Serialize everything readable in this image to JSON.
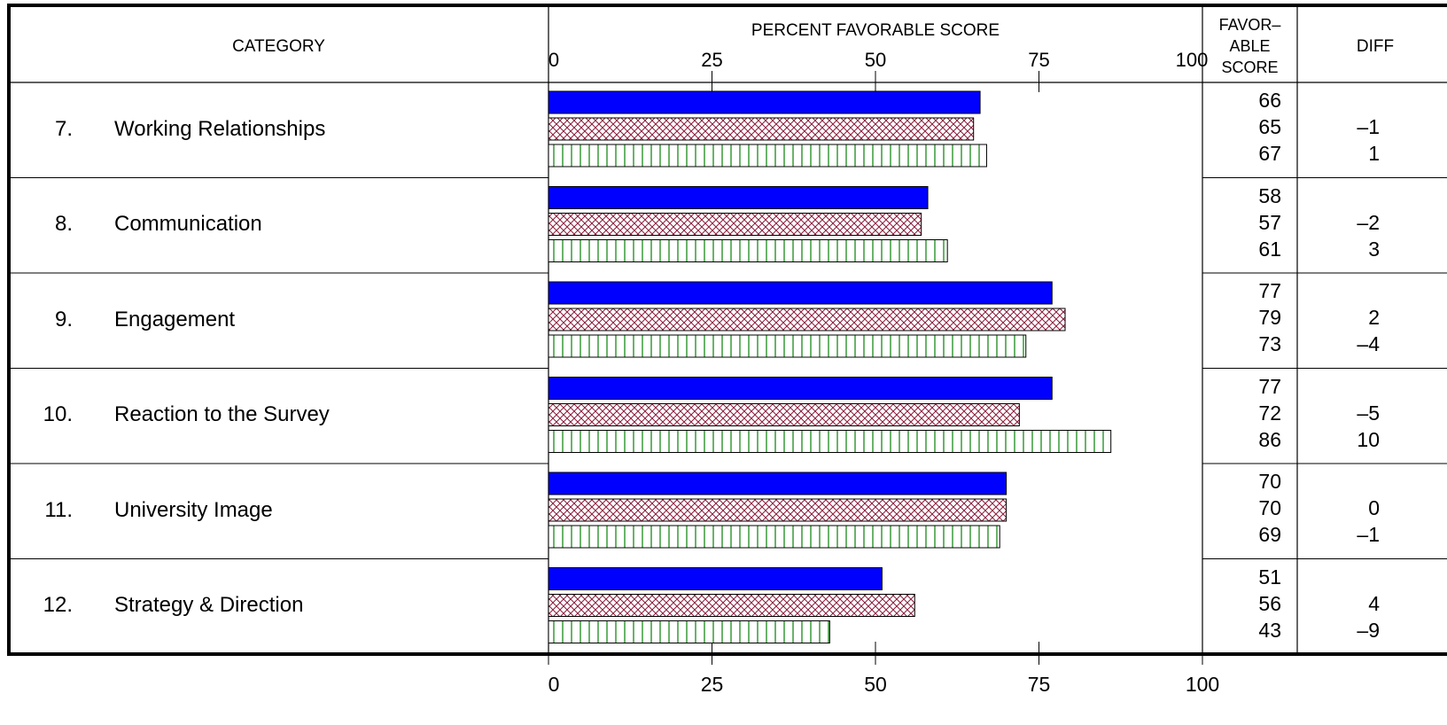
{
  "chart_data": {
    "type": "bar",
    "orientation": "horizontal",
    "headers": {
      "category": "CATEGORY",
      "axis_title": "PERCENT FAVORABLE SCORE",
      "score_line1": "FAVOR–",
      "score_line2": "ABLE",
      "score_line3": "SCORE",
      "diff": "DIFF"
    },
    "xlim": [
      0,
      100
    ],
    "ticks": [
      "0",
      "25",
      "50",
      "75",
      "100"
    ],
    "series_colors": [
      "#0000ff",
      "#8b1a3a",
      "#1a8a1a"
    ],
    "series_styles": [
      "solid",
      "crosshatch",
      "vertical-lines"
    ],
    "categories": [
      {
        "num": "7.",
        "label": "Working Relationships",
        "values": [
          66,
          65,
          67
        ],
        "scores": [
          "66",
          "65",
          "67"
        ],
        "diffs": [
          "",
          "–1",
          "1"
        ]
      },
      {
        "num": "8.",
        "label": "Communication",
        "values": [
          58,
          57,
          61
        ],
        "scores": [
          "58",
          "57",
          "61"
        ],
        "diffs": [
          "",
          "–2",
          "3"
        ]
      },
      {
        "num": "9.",
        "label": "Engagement",
        "values": [
          77,
          79,
          73
        ],
        "scores": [
          "77",
          "79",
          "73"
        ],
        "diffs": [
          "",
          "2",
          "–4"
        ]
      },
      {
        "num": "10.",
        "label": "Reaction to the Survey",
        "values": [
          77,
          72,
          86
        ],
        "scores": [
          "77",
          "72",
          "86"
        ],
        "diffs": [
          "",
          "–5",
          "10"
        ]
      },
      {
        "num": "11.",
        "label": "University Image",
        "values": [
          70,
          70,
          69
        ],
        "scores": [
          "70",
          "70",
          "69"
        ],
        "diffs": [
          "",
          "0",
          "–1"
        ]
      },
      {
        "num": "12.",
        "label": "Strategy & Direction",
        "values": [
          51,
          56,
          43
        ],
        "scores": [
          "51",
          "56",
          "43"
        ],
        "diffs": [
          "",
          "4",
          "–9"
        ]
      }
    ]
  }
}
